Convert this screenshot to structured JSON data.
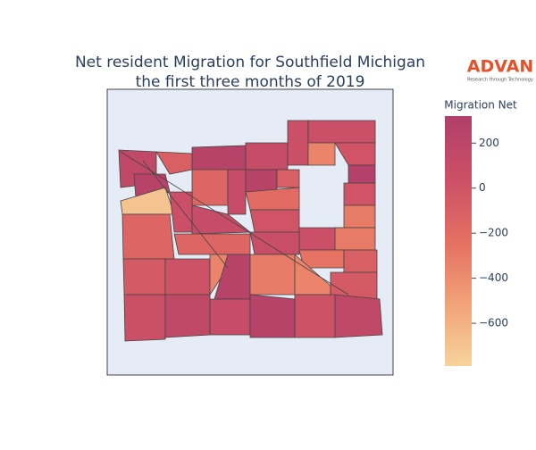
{
  "chart_data": {
    "type": "choropleth",
    "title": "Net resident Migration for Southfield Michigan",
    "subtitle": "the first three months of 2019",
    "colorbar_title": "Migration Net",
    "zlim": [
      -790,
      320
    ],
    "zticks": [
      200,
      0,
      {
        "value": -200,
        "label": "−200"
      },
      {
        "value": -400,
        "label": "−400"
      },
      {
        "value": -600,
        "label": "−600"
      }
    ],
    "colorscale": [
      "#f7d39c",
      "#f2a278",
      "#e46f62",
      "#cc4f66",
      "#b03f6a"
    ],
    "values": [
      150,
      250,
      -700,
      -100,
      250,
      100,
      50,
      50,
      -350,
      0,
      280,
      -150,
      100,
      250,
      -100,
      0,
      -300,
      -200,
      50,
      100,
      0,
      50,
      -300,
      -150,
      -150,
      80,
      -250,
      -100,
      -50,
      20,
      -350,
      250,
      -300,
      -350,
      -50,
      50,
      150,
      100,
      250,
      20,
      150
    ]
  },
  "logo": {
    "name": "ADVAN",
    "tagline": "Research through Technology"
  }
}
